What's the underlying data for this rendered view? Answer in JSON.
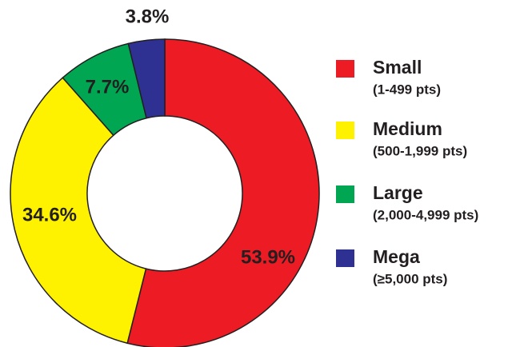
{
  "chart_data": {
    "type": "donut",
    "categories": [
      "Small",
      "Medium",
      "Large",
      "Mega"
    ],
    "category_details": [
      "(1-499 pts)",
      "(500-1,999 pts)",
      "(2,000-4,999 pts)",
      "(≥5,000 pts)"
    ],
    "values": [
      53.9,
      34.6,
      7.7,
      3.8
    ],
    "value_labels": [
      "53.9%",
      "34.6%",
      "7.7%",
      "3.8%"
    ],
    "colors": [
      "#ed1c24",
      "#fff200",
      "#00a651",
      "#2e3192"
    ],
    "legend": "right"
  }
}
